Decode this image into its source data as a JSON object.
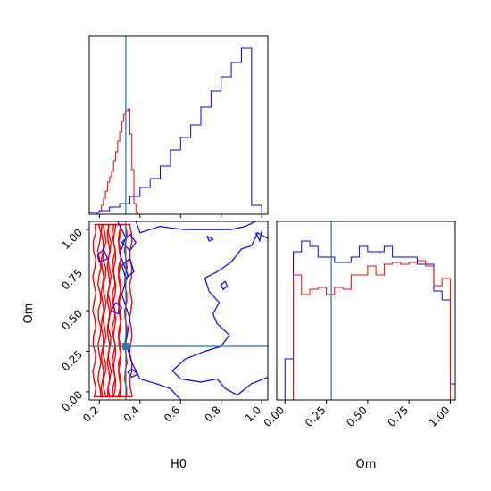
{
  "colors": {
    "series_a": "#ff0000",
    "series_b": "#0000ff",
    "truth": "#1f77b4",
    "axes": "#000000",
    "background": "#ffffff"
  },
  "labels": {
    "x_left": "H0",
    "x_right": "Om",
    "y_left": "Om"
  },
  "chart_data": [
    {
      "panel": "H0 marginal histogram",
      "type": "histogram",
      "xlim": [
        0.15,
        1.03
      ],
      "ylim": [
        0,
        1.0
      ],
      "x_ticks": [
        0.2,
        0.4,
        0.6,
        0.8,
        1.0
      ],
      "x_tick_labels_shown": false,
      "y_ticks_shown": false,
      "truth_line_x": 0.33,
      "bin_edges": [
        0.15,
        0.16,
        0.17,
        0.18,
        0.19,
        0.2,
        0.21,
        0.22,
        0.23,
        0.24,
        0.25,
        0.26,
        0.27,
        0.28,
        0.29,
        0.3,
        0.31,
        0.32,
        0.33,
        0.34,
        0.35,
        0.36,
        0.37,
        0.38,
        0.39,
        0.4
      ],
      "series": [
        {
          "name": "",
          "color": "#ff0000",
          "values": [
            0,
            0,
            0,
            0,
            0.01,
            0.02,
            0.05,
            0.09,
            0.13,
            0.18,
            0.21,
            0.24,
            0.3,
            0.35,
            0.41,
            0.46,
            0.52,
            0.56,
            0.58,
            0.59,
            0.45,
            0.25,
            0.06,
            0.01,
            0
          ]
        }
      ],
      "series_b": {
        "name": "",
        "color": "#0000ff",
        "bin_edges": [
          0.15,
          0.2,
          0.25,
          0.3,
          0.35,
          0.4,
          0.45,
          0.5,
          0.55,
          0.6,
          0.65,
          0.7,
          0.75,
          0.8,
          0.85,
          0.9,
          0.95,
          1.0
        ],
        "values": [
          0.01,
          0.02,
          0.04,
          0.06,
          0.1,
          0.15,
          0.2,
          0.27,
          0.36,
          0.43,
          0.5,
          0.6,
          0.69,
          0.77,
          0.85,
          0.93,
          0.05
        ]
      }
    },
    {
      "panel": "H0 vs Om 2D contours",
      "type": "contour",
      "xlabel": "H0",
      "ylabel": "Om",
      "xlim": [
        0.15,
        1.03
      ],
      "ylim": [
        -0.05,
        1.05
      ],
      "x_ticks": [
        0.2,
        0.4,
        0.6,
        0.8,
        1.0
      ],
      "x_tick_labels": [
        "0.2",
        "0.4",
        "0.6",
        "0.8",
        "1.0"
      ],
      "y_ticks": [
        0.0,
        0.25,
        0.5,
        0.75,
        1.0
      ],
      "y_tick_labels": [
        "0.00",
        "0.25",
        "0.50",
        "0.75",
        "1.00"
      ],
      "truth_point": {
        "x": 0.33,
        "y": 0.28
      },
      "series": [
        {
          "name": "",
          "color": "#ff0000",
          "levels": 5,
          "x_range": [
            0.17,
            0.36
          ],
          "y_range": [
            -0.03,
            1.03
          ]
        },
        {
          "name": "",
          "color": "#0000ff",
          "levels": 3,
          "x_range": [
            0.3,
            1.0
          ],
          "y_range": [
            -0.03,
            1.03
          ]
        }
      ]
    },
    {
      "panel": "Om marginal histogram",
      "type": "histogram",
      "xlabel": "Om",
      "xlim": [
        -0.05,
        1.03
      ],
      "ylim": [
        0,
        1.0
      ],
      "x_ticks": [
        0.0,
        0.25,
        0.5,
        0.75,
        1.0
      ],
      "x_tick_labels": [
        "0.00",
        "0.25",
        "0.50",
        "0.75",
        "1.00"
      ],
      "y_ticks_shown": false,
      "truth_line_x": 0.28,
      "bin_edges": [
        -0.05,
        0.0,
        0.05,
        0.1,
        0.15,
        0.2,
        0.25,
        0.3,
        0.35,
        0.4,
        0.45,
        0.5,
        0.55,
        0.6,
        0.65,
        0.7,
        0.75,
        0.8,
        0.85,
        0.9,
        0.95,
        1.0,
        1.03
      ],
      "series": [
        {
          "name": "",
          "color": "#ff0000",
          "values": [
            0,
            0,
            0.7,
            0.59,
            0.62,
            0.63,
            0.59,
            0.63,
            0.62,
            0.7,
            0.7,
            0.75,
            0.7,
            0.76,
            0.77,
            0.76,
            0.77,
            0.78,
            0.75,
            0.64,
            0.68,
            0
          ]
        },
        {
          "name": "",
          "color": "#0000ff",
          "values": [
            0,
            0.23,
            0.83,
            0.89,
            0.86,
            0.8,
            0.8,
            0.77,
            0.77,
            0.8,
            0.86,
            0.83,
            0.83,
            0.86,
            0.8,
            0.8,
            0.8,
            0.76,
            0.76,
            0.61,
            0.56,
            0.09
          ]
        }
      ]
    }
  ]
}
